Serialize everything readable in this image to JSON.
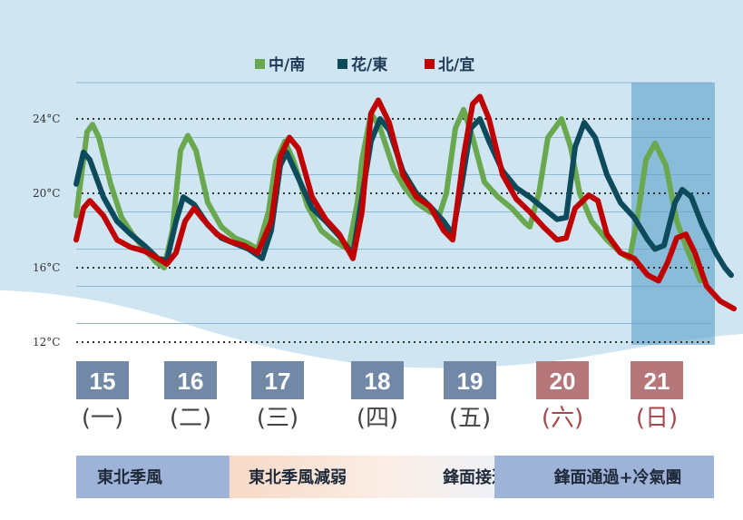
{
  "chart_data": {
    "type": "line",
    "y_unit": "°C",
    "ylim": [
      11,
      27
    ],
    "y_ticks": [
      {
        "value": 12,
        "label": "12°C"
      },
      {
        "value": 16,
        "label": "16°C"
      },
      {
        "value": 20,
        "label": "20°C"
      },
      {
        "value": 24,
        "label": "24°C"
      }
    ],
    "grid": true,
    "legend_position": "top-center",
    "days": [
      {
        "date": "15",
        "weekday": "(一)",
        "weekend": false
      },
      {
        "date": "16",
        "weekday": "(二)",
        "weekend": false
      },
      {
        "date": "17",
        "weekday": "(三)",
        "weekend": false
      },
      {
        "date": "18",
        "weekday": "(四)",
        "weekend": false
      },
      {
        "date": "19",
        "weekday": "(五)",
        "weekend": false
      },
      {
        "date": "20",
        "weekday": "(六)",
        "weekend": true
      },
      {
        "date": "21",
        "weekday": "(日)",
        "weekend": true
      }
    ],
    "highlighted_day": "21",
    "series": [
      {
        "name": "中/南",
        "color": "#6aa84f",
        "points": [
          [
            0,
            18.8
          ],
          [
            0.12,
            23.3
          ],
          [
            0.18,
            23.7
          ],
          [
            0.25,
            23.0
          ],
          [
            0.38,
            20.5
          ],
          [
            0.5,
            18.7
          ],
          [
            0.62,
            17.8
          ],
          [
            0.75,
            17.0
          ],
          [
            0.88,
            16.3
          ],
          [
            0.97,
            16.0
          ],
          [
            1.06,
            18.0
          ],
          [
            1.15,
            22.3
          ],
          [
            1.23,
            23.1
          ],
          [
            1.32,
            22.3
          ],
          [
            1.45,
            19.5
          ],
          [
            1.6,
            18.2
          ],
          [
            1.75,
            17.6
          ],
          [
            1.9,
            17.3
          ],
          [
            2.0,
            17.0
          ],
          [
            2.12,
            19.0
          ],
          [
            2.2,
            21.7
          ],
          [
            2.3,
            22.8
          ],
          [
            2.4,
            21.7
          ],
          [
            2.55,
            19.3
          ],
          [
            2.7,
            18.0
          ],
          [
            2.85,
            17.4
          ],
          [
            3.0,
            17.0
          ],
          [
            3.1,
            19.5
          ],
          [
            3.15,
            21.8
          ],
          [
            3.25,
            24.3
          ],
          [
            3.35,
            23.5
          ],
          [
            3.5,
            21.3
          ],
          [
            3.62,
            20.3
          ],
          [
            3.75,
            19.5
          ],
          [
            3.9,
            19.0
          ],
          [
            4.0,
            18.8
          ],
          [
            4.08,
            20.0
          ],
          [
            4.18,
            23.5
          ],
          [
            4.27,
            24.5
          ],
          [
            4.37,
            23.0
          ],
          [
            4.5,
            20.6
          ],
          [
            4.65,
            19.8
          ],
          [
            4.8,
            19.2
          ],
          [
            4.95,
            18.4
          ],
          [
            5.0,
            18.2
          ],
          [
            5.1,
            20.0
          ],
          [
            5.2,
            23.0
          ],
          [
            5.35,
            24.0
          ],
          [
            5.45,
            22.5
          ],
          [
            5.55,
            20.0
          ],
          [
            5.68,
            18.5
          ],
          [
            5.85,
            17.5
          ],
          [
            6.0,
            16.8
          ],
          [
            6.1,
            16.5
          ],
          [
            6.18,
            18.5
          ],
          [
            6.28,
            21.8
          ],
          [
            6.38,
            22.7
          ],
          [
            6.5,
            21.5
          ],
          [
            6.62,
            18.5
          ],
          [
            6.75,
            16.8
          ],
          [
            6.88,
            15.3
          ]
        ]
      },
      {
        "name": "花/東",
        "color": "#0d4a5c",
        "points": [
          [
            0,
            20.5
          ],
          [
            0.08,
            22.2
          ],
          [
            0.15,
            21.8
          ],
          [
            0.3,
            19.8
          ],
          [
            0.45,
            18.5
          ],
          [
            0.6,
            17.8
          ],
          [
            0.75,
            17.2
          ],
          [
            0.9,
            16.5
          ],
          [
            1.0,
            16.4
          ],
          [
            1.1,
            18.5
          ],
          [
            1.18,
            19.8
          ],
          [
            1.3,
            19.4
          ],
          [
            1.45,
            18.3
          ],
          [
            1.6,
            17.6
          ],
          [
            1.75,
            17.3
          ],
          [
            1.9,
            17.0
          ],
          [
            2.05,
            16.5
          ],
          [
            2.15,
            18.0
          ],
          [
            2.25,
            21.5
          ],
          [
            2.32,
            22.2
          ],
          [
            2.45,
            20.8
          ],
          [
            2.6,
            19.2
          ],
          [
            2.75,
            18.5
          ],
          [
            2.9,
            17.7
          ],
          [
            3.05,
            16.7
          ],
          [
            3.15,
            19.8
          ],
          [
            3.25,
            22.8
          ],
          [
            3.35,
            24.0
          ],
          [
            3.45,
            23.4
          ],
          [
            3.6,
            21.2
          ],
          [
            3.75,
            20.0
          ],
          [
            3.9,
            19.3
          ],
          [
            4.05,
            18.5
          ],
          [
            4.15,
            17.8
          ],
          [
            4.25,
            20.5
          ],
          [
            4.35,
            23.5
          ],
          [
            4.45,
            24.0
          ],
          [
            4.55,
            22.8
          ],
          [
            4.7,
            21.2
          ],
          [
            4.85,
            20.3
          ],
          [
            5.0,
            19.8
          ],
          [
            5.15,
            19.2
          ],
          [
            5.3,
            18.6
          ],
          [
            5.4,
            18.7
          ],
          [
            5.5,
            22.5
          ],
          [
            5.6,
            23.8
          ],
          [
            5.72,
            23.0
          ],
          [
            5.85,
            21.0
          ],
          [
            6.0,
            19.5
          ],
          [
            6.15,
            18.7
          ],
          [
            6.3,
            17.5
          ],
          [
            6.38,
            17.0
          ],
          [
            6.48,
            17.2
          ],
          [
            6.6,
            19.5
          ],
          [
            6.68,
            20.2
          ],
          [
            6.78,
            19.8
          ],
          [
            6.9,
            18.3
          ],
          [
            7.05,
            16.8
          ],
          [
            7.15,
            16.0
          ],
          [
            7.22,
            15.6
          ]
        ]
      },
      {
        "name": "北/宜",
        "color": "#c00000",
        "points": [
          [
            0,
            17.5
          ],
          [
            0.08,
            19.2
          ],
          [
            0.15,
            19.6
          ],
          [
            0.3,
            18.8
          ],
          [
            0.45,
            17.5
          ],
          [
            0.6,
            17.1
          ],
          [
            0.75,
            16.9
          ],
          [
            0.9,
            16.5
          ],
          [
            1.0,
            16.2
          ],
          [
            1.1,
            16.8
          ],
          [
            1.2,
            18.5
          ],
          [
            1.3,
            19.2
          ],
          [
            1.4,
            18.6
          ],
          [
            1.55,
            17.8
          ],
          [
            1.7,
            17.4
          ],
          [
            1.85,
            17.2
          ],
          [
            2.0,
            16.8
          ],
          [
            2.15,
            18.5
          ],
          [
            2.25,
            22.0
          ],
          [
            2.35,
            23.0
          ],
          [
            2.45,
            22.4
          ],
          [
            2.6,
            19.8
          ],
          [
            2.75,
            18.6
          ],
          [
            2.9,
            17.8
          ],
          [
            3.05,
            16.5
          ],
          [
            3.15,
            19.0
          ],
          [
            3.25,
            24.3
          ],
          [
            3.33,
            25.0
          ],
          [
            3.45,
            23.8
          ],
          [
            3.6,
            21.0
          ],
          [
            3.75,
            19.8
          ],
          [
            3.9,
            19.3
          ],
          [
            4.05,
            18.0
          ],
          [
            4.15,
            17.5
          ],
          [
            4.27,
            22.0
          ],
          [
            4.37,
            24.8
          ],
          [
            4.45,
            25.2
          ],
          [
            4.55,
            24.0
          ],
          [
            4.7,
            21.0
          ],
          [
            4.85,
            19.7
          ],
          [
            5.0,
            19.0
          ],
          [
            5.15,
            18.2
          ],
          [
            5.3,
            17.5
          ],
          [
            5.4,
            17.6
          ],
          [
            5.5,
            19.2
          ],
          [
            5.65,
            19.9
          ],
          [
            5.75,
            19.6
          ],
          [
            5.85,
            17.8
          ],
          [
            6.0,
            16.8
          ],
          [
            6.15,
            16.5
          ],
          [
            6.3,
            15.6
          ],
          [
            6.42,
            15.3
          ],
          [
            6.52,
            16.3
          ],
          [
            6.62,
            17.6
          ],
          [
            6.72,
            17.8
          ],
          [
            6.82,
            16.8
          ],
          [
            6.95,
            15.0
          ],
          [
            7.1,
            14.2
          ],
          [
            7.25,
            13.8
          ]
        ]
      }
    ],
    "phases": [
      {
        "label": "東北季風",
        "from": 0,
        "to": 1.85,
        "color": "#9fb3d9"
      },
      {
        "label": "東北季風減弱",
        "from": 1.85,
        "to": 4.0,
        "color": "#f5dccb"
      },
      {
        "label": "鋒面接近",
        "from": 4.0,
        "to": 5.05,
        "color": "#eef0f5"
      },
      {
        "label": "鋒面通過+冷氣團",
        "from": 5.05,
        "to": 7.7,
        "color": "#9fb3d9"
      }
    ]
  }
}
